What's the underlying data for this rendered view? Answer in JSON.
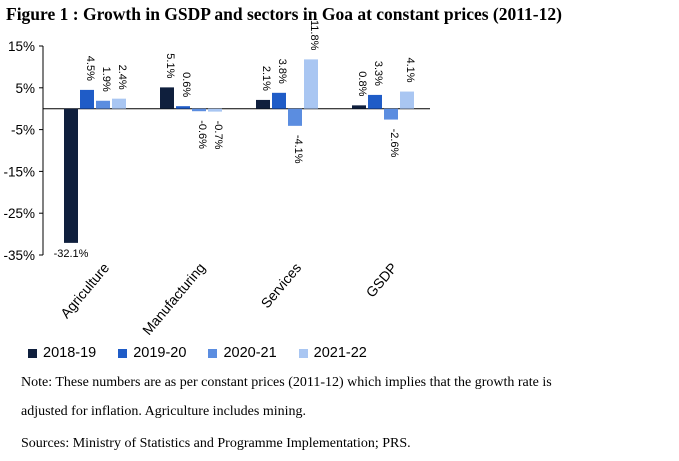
{
  "figure": {
    "title": "Figure  1 : Growth in GSDP and sectors in Goa at constant prices (2011-12)"
  },
  "chart_data": {
    "type": "bar",
    "title": "Figure  1 : Growth in GSDP and sectors in Goa at constant prices (2011-12)",
    "xlabel": "",
    "ylabel": "",
    "ylim": [
      -35,
      15
    ],
    "yticks": [
      15,
      5,
      -5,
      -15,
      -25,
      -35
    ],
    "ytick_labels": [
      "15%",
      "5%",
      "-5%",
      "-15%",
      "-25%",
      "-35%"
    ],
    "grid": false,
    "categories": [
      "Agriculture",
      "Manufacturing",
      "Services",
      "GSDP"
    ],
    "series": [
      {
        "name": "2018-19",
        "color": "#0f1f3d",
        "values": [
          -32.1,
          5.1,
          2.1,
          0.8
        ],
        "labels": [
          "-32.1%",
          "5.1%",
          "2.1%",
          "0.8%"
        ]
      },
      {
        "name": "2019-20",
        "color": "#1f5cc7",
        "values": [
          4.5,
          0.6,
          3.8,
          3.3
        ],
        "labels": [
          "4.5%",
          "0.6%",
          "3.8%",
          "3.3%"
        ]
      },
      {
        "name": "2020-21",
        "color": "#5b8de0",
        "values": [
          1.9,
          -0.6,
          -4.1,
          -2.6
        ],
        "labels": [
          "1.9%",
          "-0.6%",
          "-4.1%",
          "-2.6%"
        ]
      },
      {
        "name": "2021-22",
        "color": "#a9c6f2",
        "values": [
          2.4,
          -0.7,
          11.8,
          4.1
        ],
        "labels": [
          "2.4%",
          "-0.7%",
          "11.8%",
          "4.1%"
        ]
      }
    ],
    "legend_position": "bottom"
  },
  "notes": {
    "line1": "Note: These numbers are as per constant prices (2011-12) which implies that the growth rate is",
    "line2": "adjusted for inflation. Agriculture includes mining.",
    "sources": "Sources: Ministry of Statistics and Programme Implementation; PRS."
  }
}
